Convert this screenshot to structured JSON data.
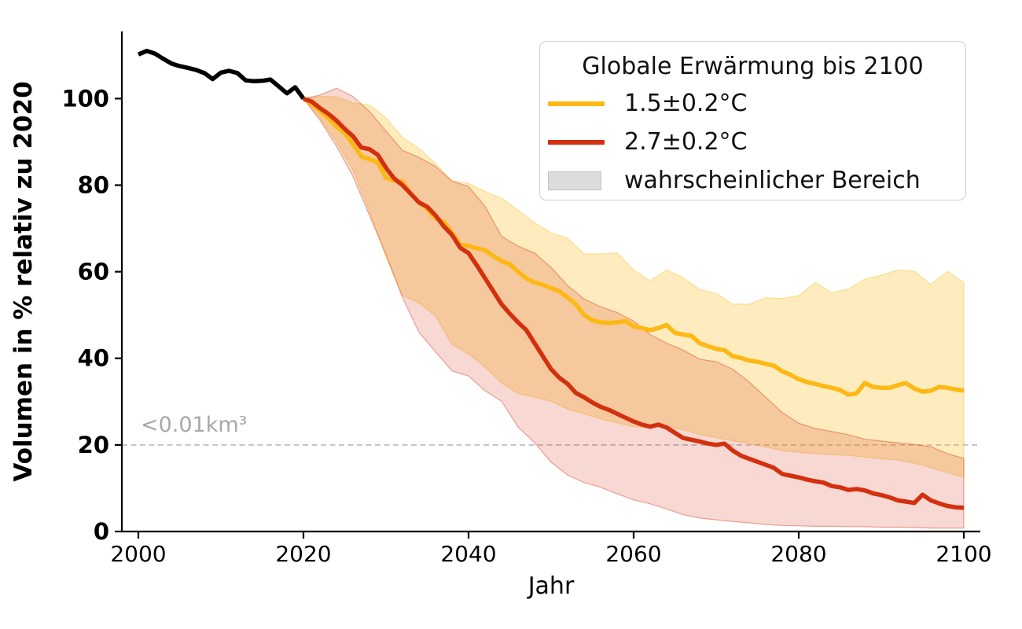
{
  "chart_data": {
    "type": "line",
    "title": "",
    "xlabel": "Jahr",
    "ylabel": "Volumen in % relativ zu 2020",
    "xlim": [
      1998,
      2102
    ],
    "ylim": [
      0,
      115.5
    ],
    "xticks": [
      2000,
      2020,
      2040,
      2060,
      2080,
      2100
    ],
    "yticks": [
      0,
      20,
      40,
      60,
      80,
      100
    ],
    "grid": false,
    "threshold": {
      "value": 20,
      "label": "<0.01km³",
      "line_color": "#bbbbbb",
      "text_color": "#a8a8a8",
      "style": "dashed"
    },
    "legend": {
      "title": "Globale Erwärmung bis 2100",
      "position": "upper right",
      "entries": [
        {
          "type": "line",
          "label": "1.5±0.2°C",
          "color": "#FDB813"
        },
        {
          "type": "line",
          "label": "2.7±0.2°C",
          "color": "#D3300F"
        },
        {
          "type": "patch",
          "label": "wahrscheinlicher Bereich",
          "patch_fill": "#DCDCDC",
          "patch_edge": "#C2C2C2"
        }
      ]
    },
    "series": [
      {
        "id": "observed",
        "color": "#000000",
        "x_start": 2000,
        "x_step": 1,
        "values": [
          110.2,
          111.0,
          110.4,
          109.2,
          108.1,
          107.5,
          107.1,
          106.6,
          105.9,
          104.5,
          106.0,
          106.4,
          105.9,
          104.2,
          104.0,
          104.1,
          104.4,
          102.8,
          101.2,
          102.6,
          100.0
        ]
      },
      {
        "id": "warming-1p5",
        "color": "#FDB813",
        "x_start": 2020,
        "x_step": 1,
        "values": [
          100.0,
          98.8,
          97.2,
          95.5,
          93.5,
          92.0,
          89.5,
          86.6,
          86.0,
          85.3,
          81.7,
          81.0,
          80.8,
          78.0,
          76.0,
          74.5,
          72.3,
          71.5,
          69.0,
          66.2,
          66.0,
          65.4,
          65.0,
          63.6,
          62.5,
          61.7,
          60.0,
          58.5,
          57.5,
          57.0,
          56.2,
          55.5,
          54.0,
          52.5,
          50.0,
          48.8,
          48.3,
          48.2,
          48.3,
          48.6,
          47.4,
          47.0,
          46.5,
          47.0,
          47.7,
          45.9,
          45.5,
          45.2,
          43.5,
          42.8,
          42.2,
          41.9,
          40.5,
          40.1,
          39.5,
          39.2,
          38.7,
          38.3,
          37.0,
          36.2,
          35.2,
          34.5,
          34.1,
          33.6,
          33.2,
          32.7,
          31.6,
          31.9,
          34.3,
          33.4,
          33.2,
          33.2,
          33.8,
          34.3,
          33.0,
          32.3,
          32.5,
          33.4,
          33.2,
          32.8,
          32.5
        ],
        "band": {
          "x_start": 2020,
          "x_step": 2,
          "fill_opacity": 0.27,
          "upper": [
            100,
            100.5,
            100.4,
            99.0,
            98.5,
            95.5,
            91.0,
            88.5,
            85.0,
            81.0,
            80.4,
            78.5,
            77.0,
            74.2,
            71.3,
            69.0,
            67.7,
            64.1,
            64.1,
            64.3,
            60.4,
            57.9,
            60.4,
            58.6,
            55.9,
            55.0,
            52.5,
            52.5,
            54.0,
            53.8,
            54.5,
            57.5,
            55.2,
            56.0,
            58.3,
            59.2,
            60.4,
            60.1,
            57.0,
            60.1,
            57.5
          ],
          "lower": [
            100,
            95.5,
            90.0,
            83.5,
            74.0,
            63.3,
            54.5,
            52.8,
            49.8,
            43.2,
            41.0,
            38.0,
            34.3,
            31.9,
            31.0,
            30.1,
            28.3,
            27.2,
            26.0,
            25.1,
            24.2,
            24.0,
            24.3,
            23.5,
            22.4,
            21.7,
            21.0,
            20.3,
            19.5,
            18.7,
            18.3,
            18.0,
            17.8,
            17.6,
            17.2,
            16.8,
            16.5,
            15.8,
            14.8,
            13.6,
            12.5
          ]
        }
      },
      {
        "id": "warming-2p7",
        "color": "#D3300F",
        "x_start": 2020,
        "x_step": 1,
        "values": [
          100.0,
          99.3,
          97.8,
          96.5,
          94.9,
          93.0,
          91.3,
          88.7,
          88.3,
          87.0,
          84.0,
          81.5,
          80.0,
          78.0,
          76.0,
          75.0,
          73.0,
          70.5,
          68.5,
          65.5,
          64.3,
          61.5,
          58.5,
          55.5,
          52.5,
          50.3,
          48.3,
          46.5,
          43.5,
          40.5,
          37.5,
          35.5,
          34.1,
          32.0,
          31.0,
          29.8,
          28.8,
          28.1,
          27.2,
          26.3,
          25.4,
          24.7,
          24.2,
          24.7,
          24.0,
          22.8,
          21.6,
          21.2,
          20.8,
          20.3,
          20.0,
          20.3,
          18.7,
          17.5,
          16.8,
          16.1,
          15.4,
          14.7,
          13.3,
          12.9,
          12.5,
          12.0,
          11.6,
          11.3,
          10.5,
          10.2,
          9.6,
          9.8,
          9.5,
          8.8,
          8.4,
          7.9,
          7.2,
          6.9,
          6.6,
          8.5,
          7.2,
          6.5,
          5.9,
          5.6,
          5.5
        ],
        "band": {
          "x_start": 2020,
          "x_step": 2,
          "fill_opacity": 0.19,
          "upper": [
            100,
            100.8,
            102.4,
            100.5,
            97.0,
            92.5,
            88.0,
            86.4,
            84.3,
            80.9,
            79.7,
            75.1,
            68.2,
            65.9,
            64.3,
            61.0,
            56.8,
            53.7,
            51.9,
            50.6,
            48.6,
            45.5,
            43.5,
            41.9,
            39.8,
            39.2,
            37.5,
            34.5,
            31.0,
            27.5,
            25.0,
            23.8,
            23.1,
            22.4,
            21.3,
            20.9,
            20.5,
            20.1,
            19.6,
            18.0,
            16.9
          ],
          "lower": [
            100,
            95.0,
            89.0,
            82.0,
            73.0,
            64.0,
            54.0,
            46.0,
            41.5,
            37.1,
            35.9,
            32.5,
            30.1,
            24.1,
            20.5,
            16.0,
            13.0,
            11.3,
            10.2,
            8.7,
            7.3,
            6.4,
            5.2,
            3.9,
            3.1,
            2.7,
            2.3,
            2.0,
            1.6,
            1.4,
            1.3,
            1.2,
            1.2,
            1.1,
            1.1,
            1.0,
            1.0,
            0.9,
            0.8,
            0.8,
            0.8
          ]
        }
      }
    ]
  }
}
